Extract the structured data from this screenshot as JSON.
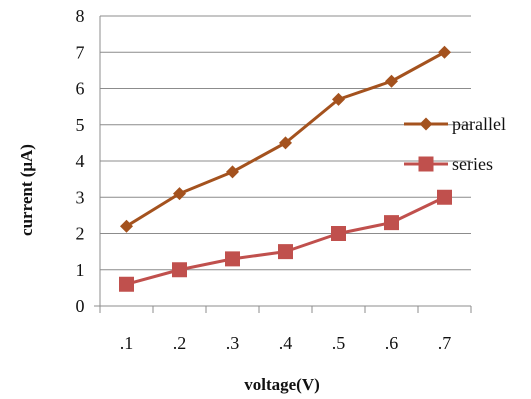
{
  "chart_data": {
    "type": "line",
    "categories": [
      ".1",
      ".2",
      ".3",
      ".4",
      ".5",
      ".6",
      ".7"
    ],
    "series": [
      {
        "name": "parallel",
        "values": [
          2.2,
          3.1,
          3.7,
          4.5,
          5.7,
          6.2,
          7.0
        ],
        "color": "#a4521e",
        "marker": "diamond"
      },
      {
        "name": "series",
        "values": [
          0.6,
          1.0,
          1.3,
          1.5,
          2.0,
          2.3,
          3.0
        ],
        "color": "#c0504d",
        "marker": "square"
      }
    ],
    "xlabel": "voltage(V)",
    "ylabel": "current (μA)",
    "ylim": [
      0,
      8
    ],
    "yticks": [
      0,
      1,
      2,
      3,
      4,
      5,
      6,
      7,
      8
    ],
    "grid": "horizontal",
    "legend": "right"
  }
}
